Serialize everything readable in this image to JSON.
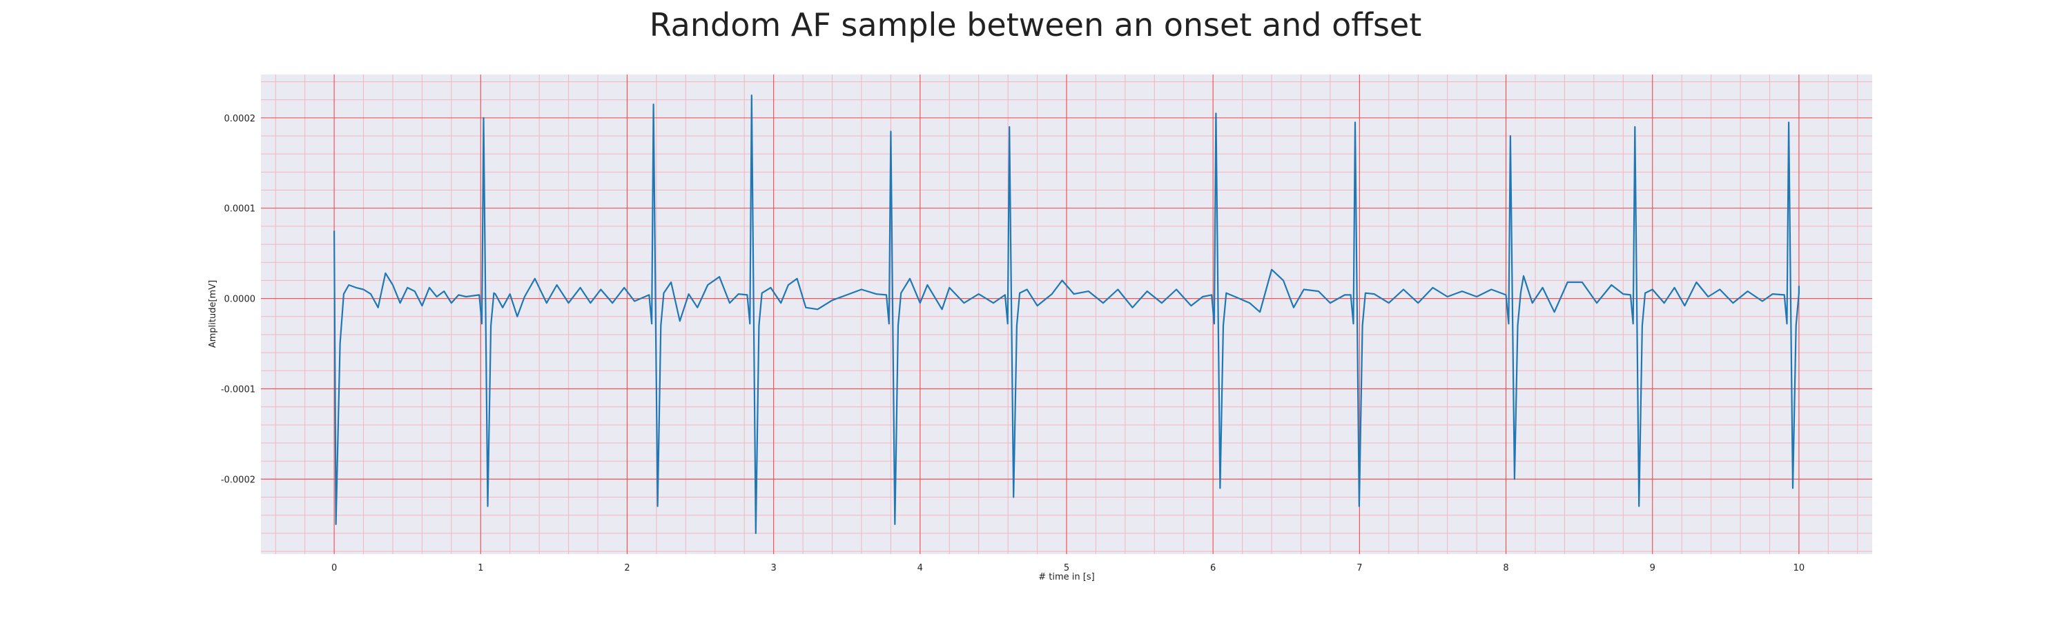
{
  "chart_data": {
    "type": "line",
    "title": "Random AF sample between an onset and offset",
    "xlabel": "# time in [s]",
    "ylabel": "Amplitude[mV]",
    "xlim": [
      -0.5,
      10.5
    ],
    "ylim": [
      -0.000283,
      0.000248
    ],
    "x_ticks": [
      0,
      1,
      2,
      3,
      4,
      5,
      6,
      7,
      8,
      9,
      10
    ],
    "x_tick_labels": [
      "0",
      "1",
      "2",
      "3",
      "4",
      "5",
      "6",
      "7",
      "8",
      "9",
      "10"
    ],
    "y_ticks": [
      0.0002,
      0.0001,
      0.0,
      -0.0001,
      -0.0002
    ],
    "y_tick_labels": [
      "0.0002",
      "0.0001",
      "0.0000",
      "-0.0001",
      "-0.0002"
    ],
    "grid": true,
    "minor_grid": true,
    "line_color": "#1f77b4",
    "major_grid_color": "#ee5555",
    "minor_grid_color": "#f2b6bf",
    "background_color": "#eaeaf2",
    "series": [
      {
        "beats": [
          {
            "t": 0.0,
            "peak": 7.5e-05,
            "trough": -0.00025,
            "order": "rs"
          },
          {
            "t": 1.02,
            "peak": 0.0002,
            "trough": -0.00023,
            "order": "rs"
          },
          {
            "t": 2.18,
            "peak": 0.000215,
            "trough": -0.00023,
            "order": "rs"
          },
          {
            "t": 2.85,
            "peak": 0.000225,
            "trough": -0.00026,
            "order": "rs"
          },
          {
            "t": 3.8,
            "peak": 0.000185,
            "trough": -0.00025,
            "order": "rs"
          },
          {
            "t": 4.61,
            "peak": 0.00019,
            "trough": -0.00022,
            "order": "rs"
          },
          {
            "t": 6.02,
            "peak": 0.000205,
            "trough": -0.00021,
            "order": "rs"
          },
          {
            "t": 6.97,
            "peak": 0.000195,
            "trough": -0.00023,
            "order": "rs"
          },
          {
            "t": 8.03,
            "peak": 0.00018,
            "trough": -0.0002,
            "order": "rs"
          },
          {
            "t": 8.88,
            "peak": 0.00019,
            "trough": -0.00023,
            "order": "rs"
          },
          {
            "t": 9.93,
            "peak": 0.000195,
            "trough": -0.00021,
            "order": "rs"
          }
        ],
        "baseline": [
          [
            0.1,
            1.5e-05
          ],
          [
            0.15,
            1.2e-05
          ],
          [
            0.2,
            1e-05
          ],
          [
            0.25,
            5e-06
          ],
          [
            0.3,
            -1e-05
          ],
          [
            0.35,
            2.8e-05
          ],
          [
            0.4,
            1.5e-05
          ],
          [
            0.45,
            -5e-06
          ],
          [
            0.5,
            1.2e-05
          ],
          [
            0.55,
            8e-06
          ],
          [
            0.6,
            -8e-06
          ],
          [
            0.65,
            1.2e-05
          ],
          [
            0.7,
            2e-06
          ],
          [
            0.75,
            8e-06
          ],
          [
            0.8,
            -5e-06
          ],
          [
            0.85,
            4e-06
          ],
          [
            0.9,
            2e-06
          ],
          [
            1.1,
            5e-06
          ],
          [
            1.15,
            -1e-05
          ],
          [
            1.2,
            5e-06
          ],
          [
            1.25,
            -2e-05
          ],
          [
            1.3,
            2e-06
          ],
          [
            1.37,
            2.2e-05
          ],
          [
            1.45,
            -5e-06
          ],
          [
            1.52,
            1.5e-05
          ],
          [
            1.6,
            -5e-06
          ],
          [
            1.68,
            1.2e-05
          ],
          [
            1.75,
            -5e-06
          ],
          [
            1.82,
            1e-05
          ],
          [
            1.9,
            -5e-06
          ],
          [
            1.98,
            1.2e-05
          ],
          [
            2.05,
            -3e-06
          ],
          [
            2.3,
            1.8e-05
          ],
          [
            2.36,
            -2.5e-05
          ],
          [
            2.42,
            5e-06
          ],
          [
            2.48,
            -1e-05
          ],
          [
            2.55,
            1.5e-05
          ],
          [
            2.63,
            2.4e-05
          ],
          [
            2.7,
            -5e-06
          ],
          [
            2.76,
            5e-06
          ],
          [
            2.98,
            1.2e-05
          ],
          [
            3.05,
            -5e-06
          ],
          [
            3.1,
            1.5e-05
          ],
          [
            3.16,
            2.2e-05
          ],
          [
            3.22,
            -1e-05
          ],
          [
            3.3,
            -1.2e-05
          ],
          [
            3.4,
            -2e-06
          ],
          [
            3.5,
            4e-06
          ],
          [
            3.6,
            1e-05
          ],
          [
            3.7,
            5e-06
          ],
          [
            3.93,
            2.2e-05
          ],
          [
            4.0,
            -5e-06
          ],
          [
            4.05,
            1.5e-05
          ],
          [
            4.15,
            -1.2e-05
          ],
          [
            4.2,
            1.2e-05
          ],
          [
            4.3,
            -5e-06
          ],
          [
            4.4,
            5e-06
          ],
          [
            4.5,
            -5e-06
          ],
          [
            4.73,
            1e-05
          ],
          [
            4.8,
            -8e-06
          ],
          [
            4.9,
            5e-06
          ],
          [
            4.97,
            2e-05
          ],
          [
            5.05,
            5e-06
          ],
          [
            5.15,
            8e-06
          ],
          [
            5.25,
            -5e-06
          ],
          [
            5.35,
            1e-05
          ],
          [
            5.45,
            -1e-05
          ],
          [
            5.55,
            8e-06
          ],
          [
            5.65,
            -5e-06
          ],
          [
            5.75,
            1e-05
          ],
          [
            5.85,
            -8e-06
          ],
          [
            5.93,
            2e-06
          ],
          [
            6.15,
            2e-06
          ],
          [
            6.25,
            -5e-06
          ],
          [
            6.32,
            -1.5e-05
          ],
          [
            6.4,
            3.2e-05
          ],
          [
            6.48,
            2e-05
          ],
          [
            6.55,
            -1e-05
          ],
          [
            6.62,
            1e-05
          ],
          [
            6.72,
            8e-06
          ],
          [
            6.8,
            -5e-06
          ],
          [
            6.9,
            4e-06
          ],
          [
            7.1,
            5e-06
          ],
          [
            7.2,
            -5e-06
          ],
          [
            7.3,
            1e-05
          ],
          [
            7.4,
            -5e-06
          ],
          [
            7.5,
            1.2e-05
          ],
          [
            7.6,
            2e-06
          ],
          [
            7.7,
            8e-06
          ],
          [
            7.8,
            2e-06
          ],
          [
            7.9,
            1e-05
          ],
          [
            8.12,
            2.5e-05
          ],
          [
            8.18,
            -5e-06
          ],
          [
            8.25,
            1.2e-05
          ],
          [
            8.33,
            -1.5e-05
          ],
          [
            8.42,
            1.8e-05
          ],
          [
            8.52,
            1.8e-05
          ],
          [
            8.62,
            -5e-06
          ],
          [
            8.72,
            1.5e-05
          ],
          [
            8.8,
            5e-06
          ],
          [
            9.0,
            1e-05
          ],
          [
            9.08,
            -5e-06
          ],
          [
            9.15,
            1.2e-05
          ],
          [
            9.22,
            -8e-06
          ],
          [
            9.3,
            1.8e-05
          ],
          [
            9.38,
            2e-06
          ],
          [
            9.46,
            1e-05
          ],
          [
            9.55,
            -5e-06
          ],
          [
            9.65,
            8e-06
          ],
          [
            9.75,
            -3e-06
          ],
          [
            9.82,
            5e-06
          ]
        ]
      }
    ]
  }
}
